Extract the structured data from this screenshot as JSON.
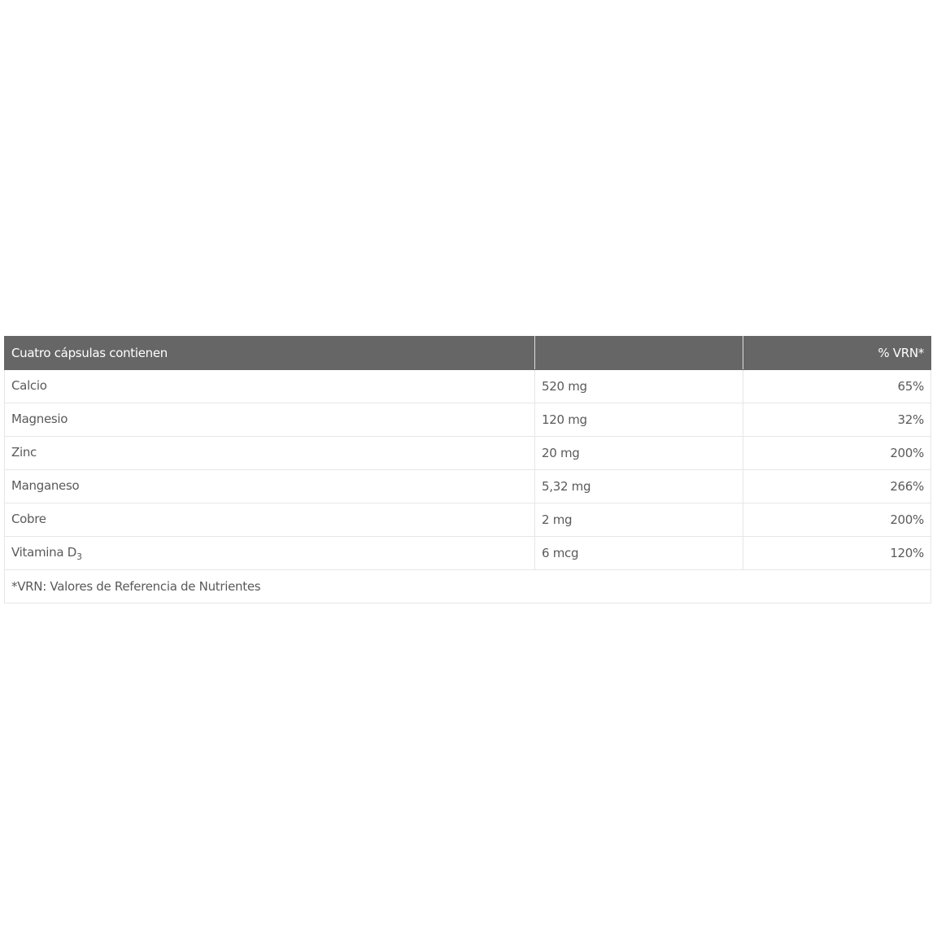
{
  "table": {
    "headers": [
      "Cuatro cápsulas contienen",
      "",
      "% VRN*"
    ],
    "rows": [
      {
        "name": "Calcio",
        "sub": "",
        "amount": "520 mg",
        "vrn": "65%"
      },
      {
        "name": "Magnesio",
        "sub": "",
        "amount": "120 mg",
        "vrn": "32%"
      },
      {
        "name": "Zinc",
        "sub": "",
        "amount": "20 mg",
        "vrn": "200%"
      },
      {
        "name": "Manganeso",
        "sub": "",
        "amount": "5,32 mg",
        "vrn": "266%"
      },
      {
        "name": "Cobre",
        "sub": "",
        "amount": "2 mg",
        "vrn": "200%"
      },
      {
        "name": "Vitamina D",
        "sub": "3",
        "amount": "6 mcg",
        "vrn": "120%"
      }
    ],
    "footnote": "*VRN: Valores de Referencia de Nutrientes"
  },
  "colors": {
    "header_bg": "#666666",
    "text": "#5a5a5a"
  }
}
